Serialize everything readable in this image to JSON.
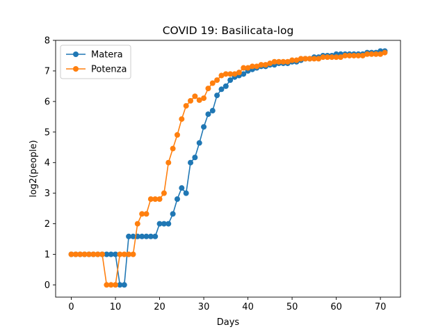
{
  "chart_data": {
    "type": "line",
    "title": "COVID 19: Basilicata-log",
    "xlabel": "Days",
    "ylabel": "log2(people)",
    "xlim": [
      -3.55,
      74.55
    ],
    "ylim": [
      -0.4,
      8.0
    ],
    "xticks": [
      0,
      10,
      20,
      30,
      40,
      50,
      60,
      70
    ],
    "yticks": [
      0,
      1,
      2,
      3,
      4,
      5,
      6,
      7,
      8
    ],
    "grid": false,
    "legend_position": "upper-left",
    "x": [
      0,
      1,
      2,
      3,
      4,
      5,
      6,
      7,
      8,
      9,
      10,
      11,
      12,
      13,
      14,
      15,
      16,
      17,
      18,
      19,
      20,
      21,
      22,
      23,
      24,
      25,
      26,
      27,
      28,
      29,
      30,
      31,
      32,
      33,
      34,
      35,
      36,
      37,
      38,
      39,
      40,
      41,
      42,
      43,
      44,
      45,
      46,
      47,
      48,
      49,
      50,
      51,
      52,
      53,
      54,
      55,
      56,
      57,
      58,
      59,
      60,
      61,
      62,
      63,
      64,
      65,
      66,
      67,
      68,
      69,
      70,
      71
    ],
    "series": [
      {
        "name": "Matera",
        "color": "#1f77b4",
        "values": [
          1,
          1,
          1,
          1,
          1,
          1,
          1,
          1,
          1,
          1,
          1,
          0,
          0,
          1.585,
          1.585,
          1.585,
          1.585,
          1.585,
          1.585,
          1.585,
          2,
          2,
          2,
          2.322,
          2.807,
          3.17,
          3,
          4,
          4.17,
          4.644,
          5.17,
          5.585,
          5.7,
          6.2,
          6.4,
          6.5,
          6.7,
          6.8,
          6.85,
          6.9,
          7.0,
          7.05,
          7.1,
          7.15,
          7.15,
          7.2,
          7.2,
          7.25,
          7.25,
          7.25,
          7.3,
          7.3,
          7.35,
          7.4,
          7.4,
          7.45,
          7.45,
          7.5,
          7.5,
          7.5,
          7.55,
          7.55,
          7.55,
          7.55,
          7.55,
          7.55,
          7.55,
          7.6,
          7.6,
          7.6,
          7.65,
          7.65
        ]
      },
      {
        "name": "Potenza",
        "color": "#ff7f0e",
        "values": [
          1,
          1,
          1,
          1,
          1,
          1,
          1,
          1,
          0,
          0,
          0,
          1,
          1,
          1,
          1,
          2,
          2.322,
          2.322,
          2.807,
          2.807,
          2.807,
          3,
          4,
          4.459,
          4.907,
          5.426,
          5.858,
          6.022,
          6.17,
          6.044,
          6.109,
          6.426,
          6.6,
          6.7,
          6.85,
          6.9,
          6.9,
          6.9,
          6.95,
          7.1,
          7.1,
          7.15,
          7.15,
          7.2,
          7.2,
          7.25,
          7.3,
          7.3,
          7.3,
          7.3,
          7.35,
          7.35,
          7.4,
          7.4,
          7.4,
          7.4,
          7.4,
          7.45,
          7.45,
          7.45,
          7.45,
          7.45,
          7.5,
          7.5,
          7.5,
          7.5,
          7.5,
          7.55,
          7.55,
          7.55,
          7.55,
          7.6
        ]
      }
    ]
  }
}
